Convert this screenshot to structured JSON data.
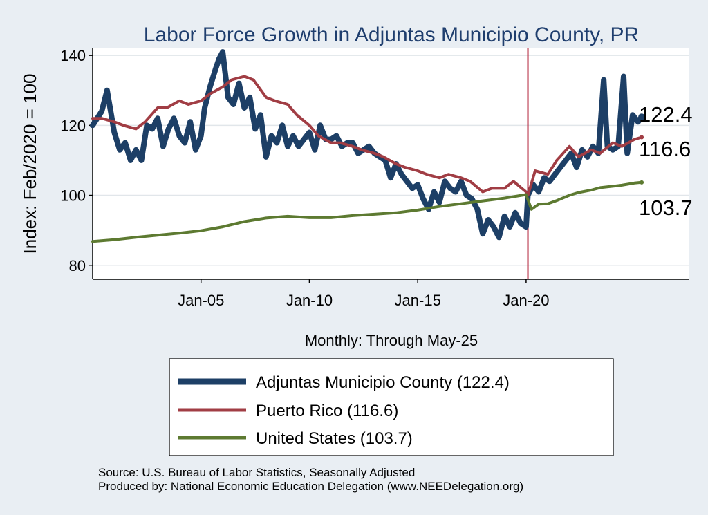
{
  "chart_data": {
    "type": "line",
    "title": "Labor Force Growth in Adjuntas Municipio  County, PR",
    "ylabel": "Index: Feb/2020 = 100",
    "xlabel": "Monthly: Through May-25",
    "ylim": [
      76,
      142
    ],
    "xlim": [
      "2000-01",
      "2027-07"
    ],
    "yticks": [
      80,
      100,
      120,
      140
    ],
    "xticks": [
      {
        "date": "2005-01",
        "label": "Jan-05"
      },
      {
        "date": "2010-01",
        "label": "Jan-10"
      },
      {
        "date": "2015-01",
        "label": "Jan-15"
      },
      {
        "date": "2020-01",
        "label": "Jan-20"
      }
    ],
    "vline": {
      "date": "2020-02",
      "color": "#b3253c"
    },
    "grid": true,
    "legend_position": "bottom",
    "series": [
      {
        "name": "Adjuntas Municipio  County (122.4)",
        "color": "#1d3f66",
        "width": 8,
        "end_label": "122.4",
        "points": [
          [
            "2000-01",
            120
          ],
          [
            "2000-06",
            124
          ],
          [
            "2000-09",
            130
          ],
          [
            "2001-01",
            118
          ],
          [
            "2001-04",
            113
          ],
          [
            "2001-07",
            115
          ],
          [
            "2001-10",
            110
          ],
          [
            "2002-01",
            113
          ],
          [
            "2002-04",
            110
          ],
          [
            "2002-07",
            120
          ],
          [
            "2002-10",
            119
          ],
          [
            "2003-01",
            122
          ],
          [
            "2003-04",
            114
          ],
          [
            "2003-07",
            119
          ],
          [
            "2003-10",
            122
          ],
          [
            "2004-01",
            117
          ],
          [
            "2004-04",
            115
          ],
          [
            "2004-07",
            121
          ],
          [
            "2004-10",
            113
          ],
          [
            "2005-01",
            117
          ],
          [
            "2005-03",
            125
          ],
          [
            "2005-06",
            131
          ],
          [
            "2005-09",
            136
          ],
          [
            "2005-11",
            139
          ],
          [
            "2006-01",
            141
          ],
          [
            "2006-04",
            128
          ],
          [
            "2006-07",
            126
          ],
          [
            "2006-10",
            132
          ],
          [
            "2007-01",
            125
          ],
          [
            "2007-04",
            128
          ],
          [
            "2007-07",
            119
          ],
          [
            "2007-10",
            123
          ],
          [
            "2008-01",
            111
          ],
          [
            "2008-04",
            117
          ],
          [
            "2008-07",
            115
          ],
          [
            "2008-10",
            120
          ],
          [
            "2009-01",
            114
          ],
          [
            "2009-04",
            117
          ],
          [
            "2009-07",
            114
          ],
          [
            "2009-10",
            116
          ],
          [
            "2010-01",
            118
          ],
          [
            "2010-04",
            113
          ],
          [
            "2010-07",
            120
          ],
          [
            "2010-10",
            116
          ],
          [
            "2011-01",
            116
          ],
          [
            "2011-04",
            117
          ],
          [
            "2011-07",
            114
          ],
          [
            "2011-10",
            115
          ],
          [
            "2012-01",
            115
          ],
          [
            "2012-04",
            112
          ],
          [
            "2012-07",
            113
          ],
          [
            "2012-10",
            114
          ],
          [
            "2013-01",
            112
          ],
          [
            "2013-04",
            111
          ],
          [
            "2013-07",
            110
          ],
          [
            "2013-10",
            105
          ],
          [
            "2014-01",
            109
          ],
          [
            "2014-04",
            106
          ],
          [
            "2014-07",
            104
          ],
          [
            "2014-10",
            102
          ],
          [
            "2015-01",
            103
          ],
          [
            "2015-04",
            99
          ],
          [
            "2015-07",
            96
          ],
          [
            "2015-10",
            101
          ],
          [
            "2016-01",
            98
          ],
          [
            "2016-04",
            104
          ],
          [
            "2016-07",
            102
          ],
          [
            "2016-10",
            101
          ],
          [
            "2017-01",
            104
          ],
          [
            "2017-04",
            100
          ],
          [
            "2017-07",
            99
          ],
          [
            "2017-10",
            96
          ],
          [
            "2018-01",
            89
          ],
          [
            "2018-04",
            93
          ],
          [
            "2018-07",
            91
          ],
          [
            "2018-10",
            88
          ],
          [
            "2019-01",
            94
          ],
          [
            "2019-04",
            91
          ],
          [
            "2019-07",
            95
          ],
          [
            "2019-10",
            92
          ],
          [
            "2020-01",
            91
          ],
          [
            "2020-02",
            100
          ],
          [
            "2020-05",
            103
          ],
          [
            "2020-08",
            101
          ],
          [
            "2020-11",
            105
          ],
          [
            "2021-02",
            104
          ],
          [
            "2021-05",
            106
          ],
          [
            "2021-08",
            108
          ],
          [
            "2021-11",
            110
          ],
          [
            "2022-02",
            112
          ],
          [
            "2022-05",
            108
          ],
          [
            "2022-08",
            113
          ],
          [
            "2022-11",
            111
          ],
          [
            "2023-02",
            114
          ],
          [
            "2023-05",
            112
          ],
          [
            "2023-08",
            133
          ],
          [
            "2023-10",
            114
          ],
          [
            "2024-01",
            113
          ],
          [
            "2024-04",
            114
          ],
          [
            "2024-07",
            134
          ],
          [
            "2024-09",
            112
          ],
          [
            "2024-12",
            123
          ],
          [
            "2025-03",
            121
          ],
          [
            "2025-05",
            122.4
          ]
        ]
      },
      {
        "name": "Puerto Rico (116.6)",
        "color": "#a13d44",
        "width": 4,
        "end_label": "116.6",
        "points": [
          [
            "2000-01",
            122
          ],
          [
            "2000-06",
            122
          ],
          [
            "2001-01",
            121
          ],
          [
            "2001-06",
            120
          ],
          [
            "2002-01",
            119
          ],
          [
            "2002-06",
            121
          ],
          [
            "2003-01",
            125
          ],
          [
            "2003-06",
            125
          ],
          [
            "2004-01",
            127
          ],
          [
            "2004-06",
            126
          ],
          [
            "2005-01",
            127
          ],
          [
            "2005-06",
            129
          ],
          [
            "2006-01",
            131
          ],
          [
            "2006-06",
            133
          ],
          [
            "2007-01",
            134
          ],
          [
            "2007-06",
            133
          ],
          [
            "2008-01",
            128
          ],
          [
            "2008-06",
            127
          ],
          [
            "2009-01",
            126
          ],
          [
            "2009-06",
            123
          ],
          [
            "2010-01",
            120
          ],
          [
            "2010-06",
            117
          ],
          [
            "2011-01",
            115
          ],
          [
            "2011-06",
            115
          ],
          [
            "2012-01",
            114
          ],
          [
            "2012-06",
            113
          ],
          [
            "2013-01",
            112
          ],
          [
            "2013-06",
            111
          ],
          [
            "2014-01",
            109
          ],
          [
            "2014-06",
            108
          ],
          [
            "2015-01",
            107
          ],
          [
            "2015-06",
            106
          ],
          [
            "2016-01",
            105
          ],
          [
            "2016-06",
            106
          ],
          [
            "2017-01",
            105
          ],
          [
            "2017-06",
            104
          ],
          [
            "2018-01",
            101
          ],
          [
            "2018-06",
            102
          ],
          [
            "2019-01",
            102
          ],
          [
            "2019-06",
            104
          ],
          [
            "2020-01",
            101
          ],
          [
            "2020-02",
            100
          ],
          [
            "2020-06",
            107
          ],
          [
            "2021-01",
            106
          ],
          [
            "2021-06",
            110
          ],
          [
            "2022-01",
            114
          ],
          [
            "2022-06",
            111
          ],
          [
            "2023-01",
            113
          ],
          [
            "2023-06",
            112
          ],
          [
            "2024-01",
            115
          ],
          [
            "2024-06",
            114
          ],
          [
            "2025-01",
            116
          ],
          [
            "2025-05",
            116.6
          ]
        ]
      },
      {
        "name": "United States (103.7)",
        "color": "#5d7a31",
        "width": 4,
        "end_label": "103.7",
        "points": [
          [
            "2000-01",
            86.8
          ],
          [
            "2001-01",
            87.3
          ],
          [
            "2002-01",
            88.0
          ],
          [
            "2003-01",
            88.6
          ],
          [
            "2004-01",
            89.2
          ],
          [
            "2005-01",
            89.9
          ],
          [
            "2006-01",
            91.0
          ],
          [
            "2007-01",
            92.5
          ],
          [
            "2008-01",
            93.5
          ],
          [
            "2009-01",
            94.0
          ],
          [
            "2010-01",
            93.6
          ],
          [
            "2011-01",
            93.6
          ],
          [
            "2012-01",
            94.2
          ],
          [
            "2013-01",
            94.6
          ],
          [
            "2014-01",
            95.0
          ],
          [
            "2015-01",
            95.8
          ],
          [
            "2016-01",
            96.8
          ],
          [
            "2017-01",
            97.6
          ],
          [
            "2018-01",
            98.4
          ],
          [
            "2019-01",
            99.2
          ],
          [
            "2020-01",
            100.2
          ],
          [
            "2020-04",
            96.0
          ],
          [
            "2020-08",
            97.5
          ],
          [
            "2021-01",
            97.6
          ],
          [
            "2021-06",
            98.5
          ],
          [
            "2022-01",
            100.0
          ],
          [
            "2022-06",
            100.8
          ],
          [
            "2023-01",
            101.5
          ],
          [
            "2023-06",
            102.2
          ],
          [
            "2024-01",
            102.6
          ],
          [
            "2024-06",
            102.9
          ],
          [
            "2025-01",
            103.5
          ],
          [
            "2025-05",
            103.7
          ]
        ]
      }
    ]
  },
  "source_note": "Source: U.S. Bureau of Labor Statistics, Seasonally Adjusted",
  "produced_note": "Produced by: National Economic Education Delegation (www.NEEDelegation.org)"
}
